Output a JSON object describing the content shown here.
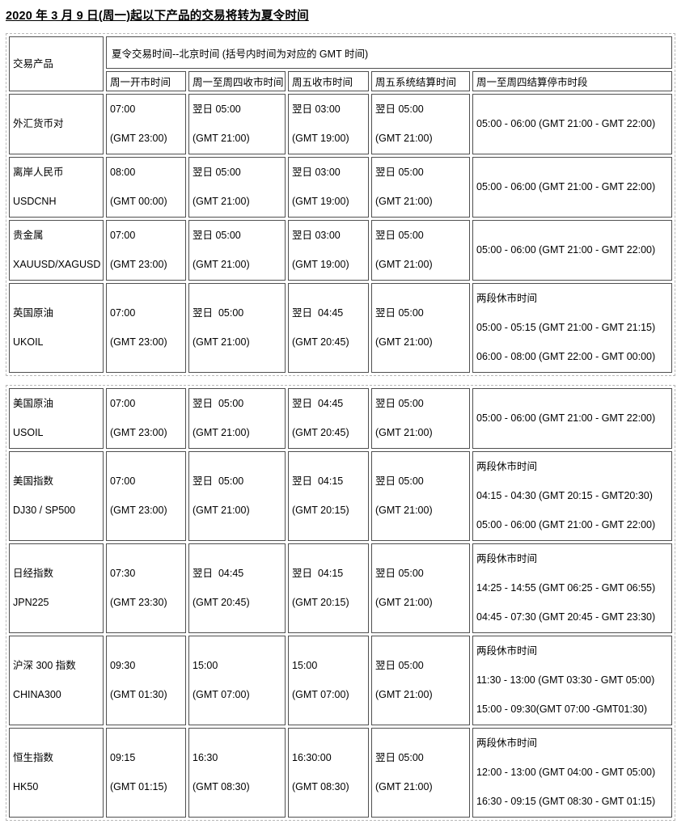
{
  "title": "2020 年 3 月 9 日(周一)起以下产品的交易将转为夏令时间",
  "header": {
    "product": "交易产品",
    "group": "夏令交易时间--北京时间 (括号内时间为对应的 GMT 时间)",
    "columns": [
      "周一开市时间",
      "周一至周四收市时间",
      "周五收市时间",
      "周五系统结算时间",
      "周一至周四结算停市时段"
    ]
  },
  "tables": [
    {
      "rows": [
        {
          "cells": [
            {
              "lines": [
                "外汇货币对"
              ]
            },
            {
              "lines": [
                "07:00",
                "(GMT 23:00)"
              ]
            },
            {
              "lines": [
                "翌日 05:00",
                "(GMT 21:00)"
              ]
            },
            {
              "lines": [
                "翌日 03:00",
                "(GMT 19:00)"
              ]
            },
            {
              "lines": [
                "翌日 05:00",
                "(GMT 21:00)"
              ]
            },
            {
              "lines": [
                "05:00 - 06:00 (GMT 21:00 - GMT 22:00)"
              ]
            }
          ]
        },
        {
          "cells": [
            {
              "lines": [
                "离岸人民币",
                "USDCNH"
              ]
            },
            {
              "lines": [
                "08:00",
                "(GMT 00:00)"
              ]
            },
            {
              "lines": [
                "翌日 05:00",
                "(GMT 21:00)"
              ]
            },
            {
              "lines": [
                "翌日 03:00",
                "(GMT 19:00)"
              ]
            },
            {
              "lines": [
                "翌日 05:00",
                "(GMT 21:00)"
              ]
            },
            {
              "lines": [
                "05:00 - 06:00 (GMT 21:00 - GMT 22:00)"
              ]
            }
          ]
        },
        {
          "cells": [
            {
              "lines": [
                "贵金属",
                "XAUUSD/XAGUSD"
              ]
            },
            {
              "lines": [
                "07:00",
                "(GMT 23:00)"
              ]
            },
            {
              "lines": [
                "翌日 05:00",
                "(GMT 21:00)"
              ]
            },
            {
              "lines": [
                "翌日 03:00",
                "(GMT 19:00)"
              ]
            },
            {
              "lines": [
                "翌日 05:00",
                "(GMT 21:00)"
              ]
            },
            {
              "lines": [
                "05:00 - 06:00 (GMT 21:00 - GMT 22:00)"
              ]
            }
          ]
        },
        {
          "cells": [
            {
              "lines": [
                "英国原油",
                "UKOIL"
              ]
            },
            {
              "lines": [
                "07:00",
                "(GMT 23:00)"
              ]
            },
            {
              "lines": [
                "翌日  05:00",
                "(GMT 21:00)"
              ]
            },
            {
              "lines": [
                "翌日  04:45",
                "(GMT 20:45)"
              ]
            },
            {
              "lines": [
                "翌日 05:00",
                "(GMT 21:00)"
              ]
            },
            {
              "lines": [
                "两段休市时间",
                "05:00 - 05:15 (GMT 21:00 - GMT 21:15)",
                "06:00 - 08:00 (GMT 22:00 - GMT 00:00)"
              ]
            }
          ]
        }
      ]
    },
    {
      "rows": [
        {
          "cells": [
            {
              "lines": [
                "美国原油",
                "USOIL"
              ]
            },
            {
              "lines": [
                "07:00",
                "(GMT 23:00)"
              ]
            },
            {
              "lines": [
                "翌日  05:00",
                "(GMT 21:00)"
              ]
            },
            {
              "lines": [
                "翌日  04:45",
                "(GMT 20:45)"
              ]
            },
            {
              "lines": [
                "翌日 05:00",
                "(GMT 21:00)"
              ]
            },
            {
              "lines": [
                "05:00 - 06:00 (GMT 21:00 - GMT 22:00)"
              ]
            }
          ]
        },
        {
          "cells": [
            {
              "lines": [
                "美国指数",
                "DJ30 / SP500"
              ]
            },
            {
              "lines": [
                "07:00",
                "(GMT 23:00)"
              ]
            },
            {
              "lines": [
                "翌日  05:00",
                "(GMT 21:00)"
              ]
            },
            {
              "lines": [
                "翌日  04:15",
                "(GMT 20:15)"
              ]
            },
            {
              "lines": [
                "翌日 05:00",
                "(GMT 21:00)"
              ]
            },
            {
              "lines": [
                "两段休市时间",
                "04:15 - 04:30 (GMT 20:15 - GMT20:30)",
                "05:00 - 06:00 (GMT 21:00 - GMT 22:00)"
              ]
            }
          ]
        },
        {
          "cells": [
            {
              "lines": [
                "日经指数",
                "JPN225"
              ]
            },
            {
              "lines": [
                "07:30",
                "(GMT 23:30)"
              ]
            },
            {
              "lines": [
                "翌日  04:45",
                "(GMT 20:45)"
              ]
            },
            {
              "lines": [
                "翌日  04:15",
                "(GMT 20:15)"
              ]
            },
            {
              "lines": [
                "翌日 05:00",
                "(GMT 21:00)"
              ]
            },
            {
              "lines": [
                "两段休市时间",
                "14:25 - 14:55 (GMT 06:25 - GMT 06:55)",
                "04:45 - 07:30 (GMT 20:45 - GMT 23:30)"
              ]
            }
          ]
        },
        {
          "cells": [
            {
              "lines": [
                "沪深 300 指数",
                "CHINA300"
              ]
            },
            {
              "lines": [
                "09:30",
                "(GMT 01:30)"
              ]
            },
            {
              "lines": [
                "15:00",
                "(GMT 07:00)"
              ]
            },
            {
              "lines": [
                "15:00",
                "(GMT 07:00)"
              ]
            },
            {
              "lines": [
                "翌日 05:00",
                "(GMT 21:00)"
              ]
            },
            {
              "lines": [
                "两段休市时间",
                "11:30 - 13:00 (GMT 03:30 - GMT 05:00)",
                "15:00 - 09:30(GMT 07:00 -GMT01:30)"
              ]
            }
          ]
        },
        {
          "cells": [
            {
              "lines": [
                "恒生指数",
                "HK50"
              ]
            },
            {
              "lines": [
                "09:15",
                "(GMT 01:15)"
              ]
            },
            {
              "lines": [
                "16:30",
                "(GMT 08:30)"
              ]
            },
            {
              "lines": [
                "16:30:00",
                "(GMT 08:30)"
              ]
            },
            {
              "lines": [
                "翌日 05:00",
                "(GMT 21:00)"
              ]
            },
            {
              "lines": [
                "两段休市时间",
                "12:00 - 13:00 (GMT 04:00 - GMT 05:00)",
                "16:30 - 09:15 (GMT 08:30 - GMT 01:15)"
              ]
            }
          ]
        }
      ]
    }
  ]
}
